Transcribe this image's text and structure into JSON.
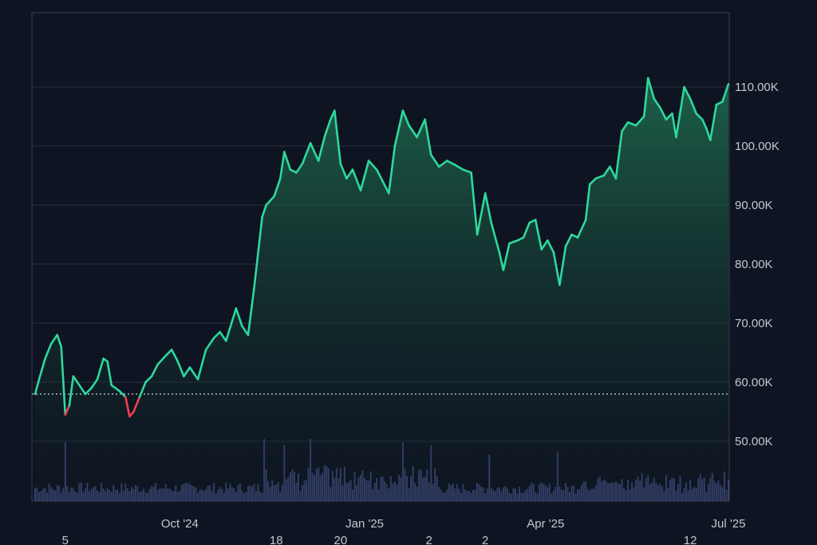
{
  "colors": {
    "background": "#0e1421",
    "plot_border": "#3a4150",
    "grid": "#2a3040",
    "line_up": "#2ed89c",
    "line_down": "#ef4050",
    "area_top": "#1f6f50",
    "area_bottom": "#0f1a22",
    "volume": "#3c4676",
    "baseline": "#bfc4cc",
    "text": "#c3c8d4"
  },
  "chart_data": {
    "type": "area",
    "title": "",
    "xlabel": "",
    "ylabel": "",
    "ylim": [
      40000,
      120000
    ],
    "y_ticks": [
      50000,
      60000,
      70000,
      80000,
      90000,
      100000,
      110000
    ],
    "y_tick_labels": [
      "50.00K",
      "60.00K",
      "70.00K",
      "80.00K",
      "90.00K",
      "100.00K",
      "110.00K"
    ],
    "x_tick_labels": [
      {
        "date": "2024-10-01",
        "label": "Oct '24"
      },
      {
        "date": "2025-01-01",
        "label": "Jan '25"
      },
      {
        "date": "2025-04-01",
        "label": "Apr '25"
      },
      {
        "date": "2025-07-01",
        "label": "Jul '25"
      }
    ],
    "x_sub_labels": [
      {
        "date": "2024-08-05",
        "label": "5"
      },
      {
        "date": "2024-11-18",
        "label": "18"
      },
      {
        "date": "2024-12-20",
        "label": "20"
      },
      {
        "date": "2025-02-02",
        "label": "2"
      },
      {
        "date": "2025-03-02",
        "label": "2"
      },
      {
        "date": "2025-06-12",
        "label": "12"
      }
    ],
    "baseline_value": 58000,
    "x_range": [
      "2024-07-21",
      "2025-07-01"
    ],
    "series": [
      {
        "points": [
          [
            "2024-07-21",
            58000
          ],
          [
            "2024-07-23",
            60500
          ],
          [
            "2024-07-26",
            64000
          ],
          [
            "2024-07-29",
            66500
          ],
          [
            "2024-08-01",
            68000
          ],
          [
            "2024-08-03",
            66000
          ],
          [
            "2024-08-05",
            54500
          ],
          [
            "2024-08-07",
            56000
          ],
          [
            "2024-08-09",
            61000
          ],
          [
            "2024-08-12",
            59500
          ],
          [
            "2024-08-15",
            58000
          ],
          [
            "2024-08-18",
            59000
          ],
          [
            "2024-08-21",
            60500
          ],
          [
            "2024-08-24",
            64000
          ],
          [
            "2024-08-26",
            63500
          ],
          [
            "2024-08-28",
            59500
          ],
          [
            "2024-09-01",
            58500
          ],
          [
            "2024-09-04",
            57500
          ],
          [
            "2024-09-06",
            54200
          ],
          [
            "2024-09-08",
            55000
          ],
          [
            "2024-09-11",
            57500
          ],
          [
            "2024-09-14",
            60000
          ],
          [
            "2024-09-17",
            61000
          ],
          [
            "2024-09-20",
            63000
          ],
          [
            "2024-09-24",
            64500
          ],
          [
            "2024-09-27",
            65500
          ],
          [
            "2024-09-30",
            63500
          ],
          [
            "2024-10-03",
            61000
          ],
          [
            "2024-10-06",
            62500
          ],
          [
            "2024-10-10",
            60500
          ],
          [
            "2024-10-14",
            65500
          ],
          [
            "2024-10-18",
            67500
          ],
          [
            "2024-10-21",
            68500
          ],
          [
            "2024-10-24",
            67000
          ],
          [
            "2024-10-29",
            72500
          ],
          [
            "2024-11-01",
            69500
          ],
          [
            "2024-11-04",
            68000
          ],
          [
            "2024-11-07",
            76000
          ],
          [
            "2024-11-11",
            88000
          ],
          [
            "2024-11-13",
            90000
          ],
          [
            "2024-11-17",
            91500
          ],
          [
            "2024-11-20",
            94500
          ],
          [
            "2024-11-22",
            99000
          ],
          [
            "2024-11-25",
            96000
          ],
          [
            "2024-11-28",
            95500
          ],
          [
            "2024-12-01",
            97000
          ],
          [
            "2024-12-05",
            100500
          ],
          [
            "2024-12-09",
            97500
          ],
          [
            "2024-12-12",
            101500
          ],
          [
            "2024-12-15",
            104500
          ],
          [
            "2024-12-17",
            106000
          ],
          [
            "2024-12-20",
            97000
          ],
          [
            "2024-12-23",
            94500
          ],
          [
            "2024-12-26",
            96000
          ],
          [
            "2024-12-30",
            92500
          ],
          [
            "2025-01-03",
            97500
          ],
          [
            "2025-01-07",
            96000
          ],
          [
            "2025-01-10",
            94000
          ],
          [
            "2025-01-13",
            92000
          ],
          [
            "2025-01-16",
            100000
          ],
          [
            "2025-01-20",
            106000
          ],
          [
            "2025-01-23",
            103500
          ],
          [
            "2025-01-27",
            101500
          ],
          [
            "2025-01-31",
            104500
          ],
          [
            "2025-02-03",
            98500
          ],
          [
            "2025-02-07",
            96500
          ],
          [
            "2025-02-11",
            97500
          ],
          [
            "2025-02-15",
            96800
          ],
          [
            "2025-02-19",
            96000
          ],
          [
            "2025-02-23",
            95500
          ],
          [
            "2025-02-26",
            85000
          ],
          [
            "2025-03-02",
            92000
          ],
          [
            "2025-03-05",
            87000
          ],
          [
            "2025-03-09",
            82000
          ],
          [
            "2025-03-11",
            79000
          ],
          [
            "2025-03-14",
            83500
          ],
          [
            "2025-03-18",
            84000
          ],
          [
            "2025-03-21",
            84500
          ],
          [
            "2025-03-24",
            87000
          ],
          [
            "2025-03-27",
            87500
          ],
          [
            "2025-03-30",
            82500
          ],
          [
            "2025-04-02",
            84000
          ],
          [
            "2025-04-05",
            82000
          ],
          [
            "2025-04-08",
            76500
          ],
          [
            "2025-04-11",
            83000
          ],
          [
            "2025-04-14",
            85000
          ],
          [
            "2025-04-17",
            84500
          ],
          [
            "2025-04-21",
            87500
          ],
          [
            "2025-04-23",
            93500
          ],
          [
            "2025-04-26",
            94500
          ],
          [
            "2025-04-30",
            95000
          ],
          [
            "2025-05-03",
            96500
          ],
          [
            "2025-05-06",
            94500
          ],
          [
            "2025-05-09",
            102500
          ],
          [
            "2025-05-12",
            104000
          ],
          [
            "2025-05-16",
            103500
          ],
          [
            "2025-05-20",
            105000
          ],
          [
            "2025-05-22",
            111500
          ],
          [
            "2025-05-25",
            108000
          ],
          [
            "2025-05-28",
            106500
          ],
          [
            "2025-05-31",
            104500
          ],
          [
            "2025-06-03",
            105500
          ],
          [
            "2025-06-05",
            101500
          ],
          [
            "2025-06-09",
            110000
          ],
          [
            "2025-06-12",
            108000
          ],
          [
            "2025-06-15",
            105500
          ],
          [
            "2025-06-18",
            104500
          ],
          [
            "2025-06-20",
            103000
          ],
          [
            "2025-06-22",
            101000
          ],
          [
            "2025-06-25",
            107000
          ],
          [
            "2025-06-28",
            107500
          ],
          [
            "2025-07-01",
            110500
          ]
        ]
      }
    ],
    "volume_series": [
      {
        "date": "2024-08-05",
        "rel": 0.95
      },
      {
        "date": "2024-11-12",
        "rel": 1.0
      },
      {
        "date": "2024-11-22",
        "rel": 0.9
      },
      {
        "date": "2024-12-05",
        "rel": 1.0
      },
      {
        "date": "2025-01-20",
        "rel": 0.95
      },
      {
        "date": "2025-02-03",
        "rel": 0.9
      },
      {
        "date": "2025-03-04",
        "rel": 0.75
      },
      {
        "date": "2025-04-07",
        "rel": 0.8
      }
    ]
  }
}
